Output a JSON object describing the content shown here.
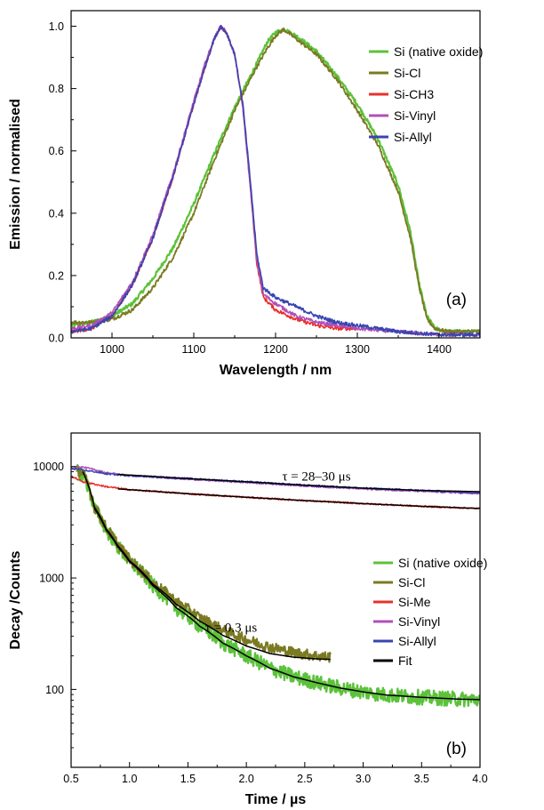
{
  "chart_data": [
    {
      "type": "line",
      "panel_label": "(a)",
      "xlabel": "Wavelength / nm",
      "ylabel": "Emission / normalised",
      "xlim": [
        950,
        1450
      ],
      "ylim": [
        0,
        1.05
      ],
      "y_scale": "linear",
      "x_ticks": [
        1000,
        1100,
        1200,
        1300,
        1400
      ],
      "x_tick_labels": [
        "1000",
        "1100",
        "1200",
        "1300",
        "1400"
      ],
      "y_ticks": [
        0,
        0.2,
        0.4,
        0.6,
        0.8,
        1.0
      ],
      "y_tick_labels": [
        "0.0",
        "0.2",
        "0.4",
        "0.6",
        "0.8",
        "1.0"
      ],
      "legend_position": "top-right",
      "series": [
        {
          "name": "Si (native oxide)",
          "color": "#5cc23a",
          "width": 2.2,
          "points": [
            [
              950,
              0.04
            ],
            [
              975,
              0.05
            ],
            [
              1000,
              0.07
            ],
            [
              1025,
              0.11
            ],
            [
              1050,
              0.19
            ],
            [
              1075,
              0.29
            ],
            [
              1100,
              0.43
            ],
            [
              1125,
              0.59
            ],
            [
              1150,
              0.74
            ],
            [
              1175,
              0.87
            ],
            [
              1190,
              0.95
            ],
            [
              1200,
              0.98
            ],
            [
              1210,
              0.99
            ],
            [
              1225,
              0.97
            ],
            [
              1250,
              0.92
            ],
            [
              1275,
              0.84
            ],
            [
              1300,
              0.75
            ],
            [
              1325,
              0.64
            ],
            [
              1350,
              0.49
            ],
            [
              1365,
              0.34
            ],
            [
              1375,
              0.18
            ],
            [
              1385,
              0.07
            ],
            [
              1395,
              0.03
            ],
            [
              1410,
              0.02
            ],
            [
              1450,
              0.02
            ]
          ]
        },
        {
          "name": "Si-Cl",
          "color": "#7a7a22",
          "width": 1.8,
          "points": [
            [
              950,
              0.05
            ],
            [
              975,
              0.05
            ],
            [
              1000,
              0.06
            ],
            [
              1025,
              0.09
            ],
            [
              1050,
              0.16
            ],
            [
              1075,
              0.26
            ],
            [
              1100,
              0.4
            ],
            [
              1125,
              0.57
            ],
            [
              1150,
              0.73
            ],
            [
              1175,
              0.86
            ],
            [
              1190,
              0.93
            ],
            [
              1200,
              0.97
            ],
            [
              1210,
              0.99
            ],
            [
              1225,
              0.96
            ],
            [
              1250,
              0.91
            ],
            [
              1275,
              0.83
            ],
            [
              1300,
              0.73
            ],
            [
              1325,
              0.62
            ],
            [
              1350,
              0.47
            ],
            [
              1365,
              0.32
            ],
            [
              1375,
              0.17
            ],
            [
              1385,
              0.06
            ],
            [
              1395,
              0.03
            ],
            [
              1410,
              0.02
            ],
            [
              1450,
              0.02
            ]
          ]
        },
        {
          "name": "Si-CH3",
          "color": "#e8302c",
          "width": 1.6,
          "points": [
            [
              950,
              0.02
            ],
            [
              975,
              0.03
            ],
            [
              1000,
              0.07
            ],
            [
              1025,
              0.17
            ],
            [
              1050,
              0.32
            ],
            [
              1075,
              0.52
            ],
            [
              1100,
              0.75
            ],
            [
              1115,
              0.88
            ],
            [
              1125,
              0.96
            ],
            [
              1133,
              1.0
            ],
            [
              1140,
              0.98
            ],
            [
              1150,
              0.91
            ],
            [
              1160,
              0.74
            ],
            [
              1170,
              0.46
            ],
            [
              1177,
              0.24
            ],
            [
              1185,
              0.13
            ],
            [
              1200,
              0.09
            ],
            [
              1225,
              0.06
            ],
            [
              1250,
              0.04
            ],
            [
              1275,
              0.03
            ],
            [
              1300,
              0.03
            ]
          ]
        },
        {
          "name": "Si-Vinyl",
          "color": "#b14fb8",
          "width": 1.6,
          "points": [
            [
              950,
              0.03
            ],
            [
              975,
              0.04
            ],
            [
              1000,
              0.08
            ],
            [
              1025,
              0.18
            ],
            [
              1050,
              0.33
            ],
            [
              1075,
              0.53
            ],
            [
              1100,
              0.76
            ],
            [
              1115,
              0.89
            ],
            [
              1125,
              0.96
            ],
            [
              1133,
              1.0
            ],
            [
              1140,
              0.98
            ],
            [
              1150,
              0.91
            ],
            [
              1160,
              0.74
            ],
            [
              1170,
              0.46
            ],
            [
              1177,
              0.25
            ],
            [
              1185,
              0.14
            ],
            [
              1200,
              0.11
            ],
            [
              1225,
              0.07
            ],
            [
              1250,
              0.05
            ],
            [
              1275,
              0.04
            ],
            [
              1300,
              0.03
            ],
            [
              1350,
              0.02
            ],
            [
              1400,
              0.01
            ],
            [
              1450,
              0.01
            ]
          ]
        },
        {
          "name": "Si-Allyl",
          "color": "#3845b0",
          "width": 1.6,
          "points": [
            [
              950,
              0.02
            ],
            [
              975,
              0.03
            ],
            [
              1000,
              0.07
            ],
            [
              1025,
              0.17
            ],
            [
              1050,
              0.32
            ],
            [
              1075,
              0.52
            ],
            [
              1100,
              0.75
            ],
            [
              1115,
              0.88
            ],
            [
              1125,
              0.96
            ],
            [
              1133,
              1.0
            ],
            [
              1140,
              0.98
            ],
            [
              1150,
              0.91
            ],
            [
              1160,
              0.75
            ],
            [
              1170,
              0.48
            ],
            [
              1177,
              0.27
            ],
            [
              1185,
              0.16
            ],
            [
              1200,
              0.13
            ],
            [
              1225,
              0.1
            ],
            [
              1250,
              0.07
            ],
            [
              1275,
              0.05
            ],
            [
              1300,
              0.04
            ],
            [
              1325,
              0.03
            ],
            [
              1350,
              0.02
            ],
            [
              1400,
              0.01
            ],
            [
              1450,
              0.01
            ]
          ]
        }
      ]
    },
    {
      "type": "line",
      "panel_label": "(b)",
      "xlabel": "Time / µs",
      "ylabel": "Decay /Counts",
      "xlim": [
        0.5,
        4.0
      ],
      "ylim": [
        20,
        20000
      ],
      "y_scale": "log",
      "x_ticks": [
        0.5,
        1.0,
        1.5,
        2.0,
        2.5,
        3.0,
        3.5,
        4.0
      ],
      "x_tick_labels": [
        "0.5",
        "1.0",
        "1.5",
        "2.0",
        "2.5",
        "3.0",
        "3.5",
        "4.0"
      ],
      "y_ticks": [
        100,
        1000,
        10000
      ],
      "y_tick_labels": [
        "100",
        "1000",
        "10000"
      ],
      "legend_position": "bottom-right",
      "annotations": [
        {
          "text": "τ = 28–30 μs",
          "x": 2.6,
          "y": 7500
        },
        {
          "text": "τ = 0.3 μs",
          "x": 1.87,
          "y": 330
        }
      ],
      "series": [
        {
          "name": "Si (native oxide)",
          "color": "#5cc23a",
          "width": 2.4,
          "noise": 0.07,
          "points": [
            [
              0.55,
              9000
            ],
            [
              0.6,
              8500
            ],
            [
              0.7,
              4200
            ],
            [
              0.8,
              2700
            ],
            [
              0.9,
              1900
            ],
            [
              1.0,
              1400
            ],
            [
              1.2,
              850
            ],
            [
              1.4,
              540
            ],
            [
              1.6,
              370
            ],
            [
              1.8,
              260
            ],
            [
              2.0,
              200
            ],
            [
              2.2,
              155
            ],
            [
              2.4,
              130
            ],
            [
              2.6,
              115
            ],
            [
              2.8,
              103
            ],
            [
              3.0,
              95
            ],
            [
              3.2,
              89
            ],
            [
              3.5,
              85
            ],
            [
              3.8,
              82
            ],
            [
              4.0,
              81
            ]
          ]
        },
        {
          "name": "Si-Cl",
          "color": "#7a7a22",
          "width": 2.2,
          "noise": 0.05,
          "points": [
            [
              0.55,
              9200
            ],
            [
              0.6,
              8800
            ],
            [
              0.7,
              4300
            ],
            [
              0.8,
              2800
            ],
            [
              0.9,
              2000
            ],
            [
              1.0,
              1450
            ],
            [
              1.2,
              900
            ],
            [
              1.4,
              610
            ],
            [
              1.6,
              440
            ],
            [
              1.8,
              340
            ],
            [
              2.0,
              280
            ],
            [
              2.2,
              240
            ],
            [
              2.4,
              215
            ],
            [
              2.6,
              200
            ],
            [
              2.72,
              195
            ]
          ]
        },
        {
          "name": "Si-Me",
          "color": "#e8302c",
          "width": 1.4,
          "noise": 0.008,
          "points": [
            [
              0.5,
              8200
            ],
            [
              0.6,
              7300
            ],
            [
              0.8,
              6600
            ],
            [
              1.0,
              6200
            ],
            [
              1.5,
              5700
            ],
            [
              2.0,
              5300
            ],
            [
              2.5,
              4950
            ],
            [
              3.0,
              4650
            ],
            [
              3.5,
              4400
            ],
            [
              4.0,
              4200
            ]
          ]
        },
        {
          "name": "Si-Vinyl",
          "color": "#b14fb8",
          "width": 1.4,
          "noise": 0.008,
          "points": [
            [
              0.5,
              9700
            ],
            [
              0.6,
              9900
            ],
            [
              0.7,
              9400
            ],
            [
              0.8,
              8800
            ],
            [
              1.0,
              8300
            ],
            [
              1.5,
              7700
            ],
            [
              2.0,
              7200
            ],
            [
              2.5,
              6700
            ],
            [
              3.0,
              6300
            ],
            [
              3.5,
              6000
            ],
            [
              4.0,
              5700
            ]
          ]
        },
        {
          "name": "Si-Allyl",
          "color": "#3845b0",
          "width": 1.4,
          "noise": 0.008,
          "points": [
            [
              0.5,
              9600
            ],
            [
              0.6,
              9300
            ],
            [
              0.7,
              9000
            ],
            [
              0.8,
              8600
            ],
            [
              1.0,
              8300
            ],
            [
              1.5,
              7800
            ],
            [
              2.0,
              7300
            ],
            [
              2.5,
              6800
            ],
            [
              3.0,
              6400
            ],
            [
              3.5,
              6100
            ],
            [
              4.0,
              5800
            ]
          ]
        },
        {
          "name": "Fit",
          "color": "#000000",
          "width": 1.5,
          "noise": 0,
          "segments": [
            [
              [
                0.6,
                9000
              ],
              [
                0.7,
                4300
              ],
              [
                0.8,
                2750
              ],
              [
                0.9,
                1950
              ],
              [
                1.0,
                1430
              ],
              [
                1.2,
                880
              ],
              [
                1.4,
                580
              ],
              [
                1.6,
                410
              ],
              [
                1.8,
                305
              ],
              [
                2.0,
                245
              ],
              [
                2.2,
                210
              ],
              [
                2.4,
                195
              ],
              [
                2.6,
                188
              ],
              [
                2.72,
                186
              ]
            ],
            [
              [
                0.7,
                4200
              ],
              [
                0.8,
                2700
              ],
              [
                0.9,
                1900
              ],
              [
                1.0,
                1400
              ],
              [
                1.2,
                850
              ],
              [
                1.4,
                540
              ],
              [
                1.6,
                370
              ],
              [
                1.8,
                260
              ],
              [
                2.0,
                200
              ],
              [
                2.2,
                155
              ],
              [
                2.4,
                130
              ],
              [
                2.6,
                115
              ],
              [
                2.8,
                103
              ],
              [
                3.0,
                95
              ],
              [
                3.2,
                89
              ],
              [
                3.5,
                85
              ],
              [
                3.8,
                82
              ],
              [
                4.0,
                81
              ]
            ],
            [
              [
                0.9,
                6300
              ],
              [
                1.5,
                5700
              ],
              [
                2.0,
                5300
              ],
              [
                2.5,
                4950
              ],
              [
                3.0,
                4650
              ],
              [
                3.5,
                4400
              ],
              [
                4.0,
                4200
              ]
            ],
            [
              [
                0.9,
                8500
              ],
              [
                1.5,
                7800
              ],
              [
                2.0,
                7300
              ],
              [
                2.5,
                6800
              ],
              [
                3.0,
                6400
              ],
              [
                3.5,
                6100
              ],
              [
                4.0,
                5950
              ]
            ]
          ]
        }
      ]
    }
  ]
}
